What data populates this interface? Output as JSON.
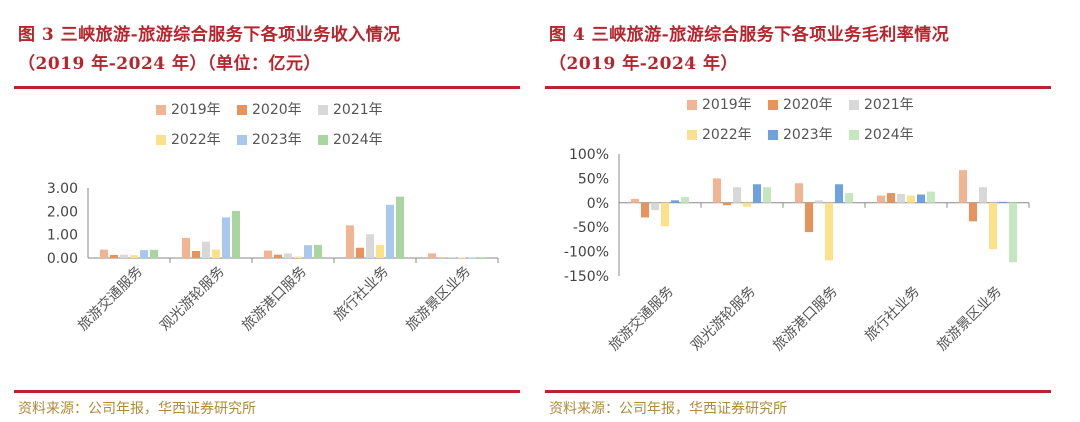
{
  "chart_data": [
    {
      "type": "bar",
      "title_line1": "图 3 三峡旅游-旅游综合服务下各项业务收入情况",
      "title_line2": "（2019 年-2024 年）（单位：亿元）",
      "source": "资料来源：公司年报，华西证券研究所",
      "categories": [
        "旅游交通服务",
        "观光游轮服务",
        "旅游港口服务",
        "旅行社业务",
        "旅游景区业务"
      ],
      "series": [
        {
          "name": "2019年",
          "color": "#f2b594",
          "values": [
            0.36,
            0.86,
            0.32,
            1.4,
            0.2
          ]
        },
        {
          "name": "2020年",
          "color": "#e8935c",
          "values": [
            0.13,
            0.3,
            0.14,
            0.44,
            0.02
          ]
        },
        {
          "name": "2021年",
          "color": "#d8d8d8",
          "values": [
            0.14,
            0.7,
            0.2,
            1.02,
            0.04
          ]
        },
        {
          "name": "2022年",
          "color": "#fbe18a",
          "values": [
            0.12,
            0.36,
            0.06,
            0.55,
            0.02
          ]
        },
        {
          "name": "2023年",
          "color": "#a9c8ee",
          "values": [
            0.34,
            1.74,
            0.55,
            2.28,
            0.02
          ]
        },
        {
          "name": "2024年",
          "color": "#a8d5a0",
          "values": [
            0.35,
            2.02,
            0.56,
            2.63,
            0.03
          ]
        }
      ],
      "y_ticks": [
        "0.00",
        "1.00",
        "2.00",
        "3.00"
      ],
      "ylim": [
        0,
        3
      ]
    },
    {
      "type": "bar",
      "title_line1": "图 4 三峡旅游-旅游综合服务下各项业务毛利率情况",
      "title_line2": "（2019 年-2024 年）",
      "source": "资料来源：公司年报，华西证券研究所",
      "categories": [
        "旅游交通服务",
        "观光游轮服务",
        "旅游港口服务",
        "旅行社业务",
        "旅游景区业务"
      ],
      "series": [
        {
          "name": "2019年",
          "color": "#f2b594",
          "values": [
            8,
            50,
            40,
            15,
            67
          ]
        },
        {
          "name": "2020年",
          "color": "#e8935c",
          "values": [
            -30,
            -5,
            -60,
            20,
            -38
          ]
        },
        {
          "name": "2021年",
          "color": "#d8d8d8",
          "values": [
            -15,
            32,
            5,
            18,
            32
          ]
        },
        {
          "name": "2022年",
          "color": "#fbe18a",
          "values": [
            -48,
            -8,
            -118,
            15,
            -95
          ]
        },
        {
          "name": "2023年",
          "color": "#6fa0e0",
          "values": [
            5,
            38,
            38,
            17,
            2
          ]
        },
        {
          "name": "2024年",
          "color": "#c6e6c0",
          "values": [
            12,
            32,
            20,
            23,
            -122
          ]
        }
      ],
      "y_ticks": [
        "-150%",
        "-100%",
        "-50%",
        "0%",
        "50%",
        "100%"
      ],
      "ylim": [
        -150,
        100
      ]
    }
  ]
}
